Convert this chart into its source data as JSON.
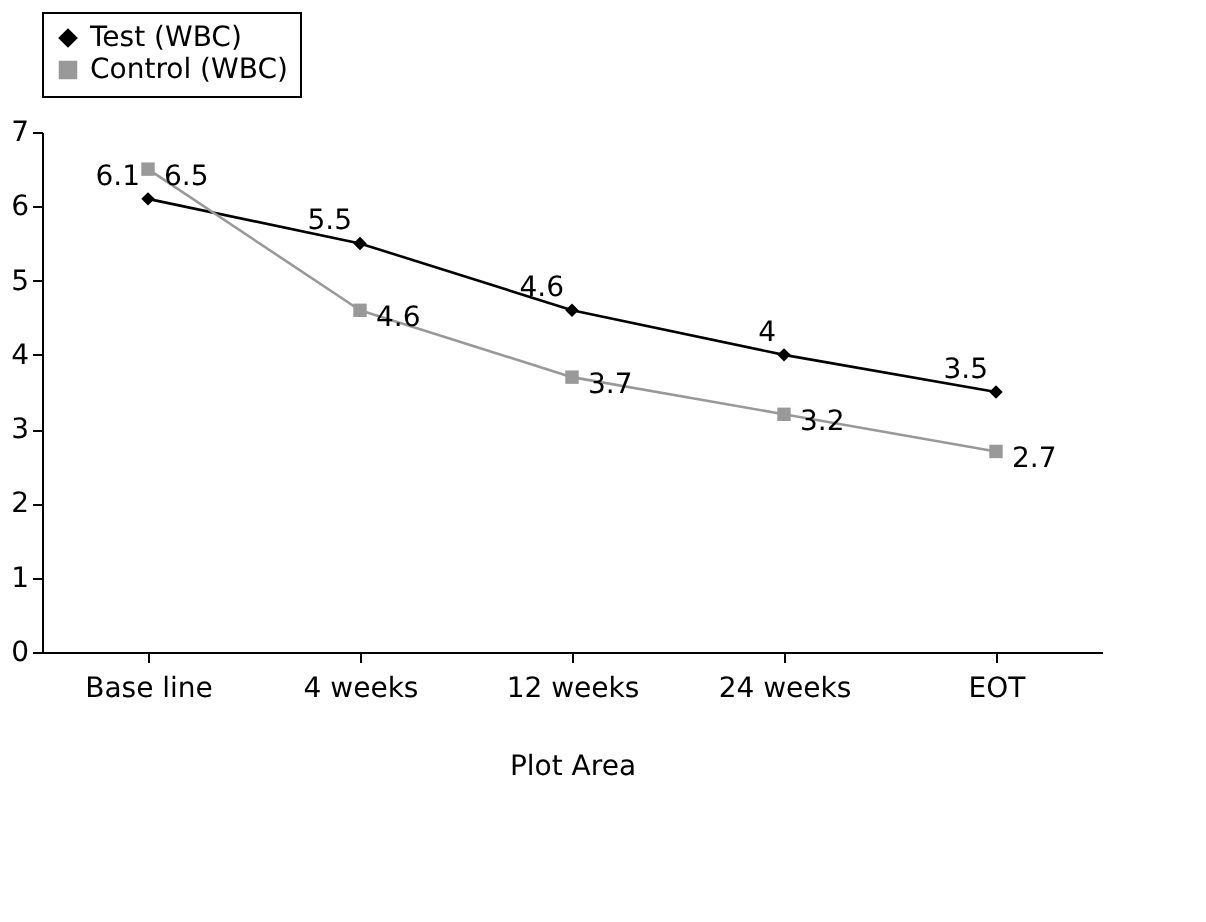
{
  "chart_data": {
    "type": "line",
    "xlabel": "Plot Area",
    "categories": [
      "Base line",
      "4 weeks",
      "12 weeks",
      "24 weeks",
      "EOT"
    ],
    "series": [
      {
        "name": "Test (WBC)",
        "color": "#000000",
        "marker": "diamond",
        "values": [
          6.1,
          5.5,
          4.6,
          4,
          3.5
        ]
      },
      {
        "name": "Control (WBC)",
        "color": "#999999",
        "marker": "square",
        "values": [
          6.5,
          4.6,
          3.7,
          3.2,
          2.7
        ]
      }
    ],
    "ylim": [
      0,
      7
    ],
    "yticks": [
      0,
      1,
      2,
      3,
      4,
      5,
      6,
      7
    ],
    "grid": false,
    "legend": "top",
    "data_labels": true,
    "line_style": "solid"
  }
}
